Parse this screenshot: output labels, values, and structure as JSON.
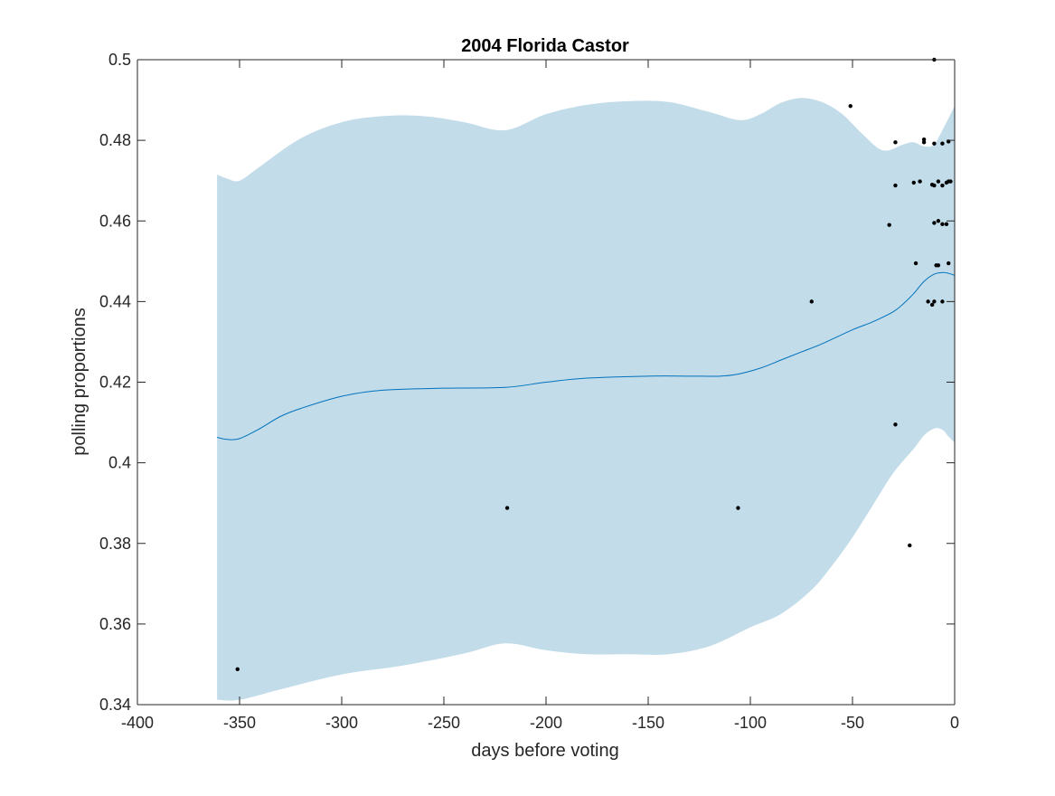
{
  "chart_data": {
    "type": "line",
    "title": "2004 Florida Castor",
    "xlabel": "days before voting",
    "ylabel": "polling proportions",
    "xlim": [
      -400,
      0
    ],
    "ylim": [
      0.34,
      0.5
    ],
    "xticks": [
      -400,
      -350,
      -300,
      -250,
      -200,
      -150,
      -100,
      -50,
      0
    ],
    "xtick_labels": [
      "-400",
      "-350",
      "-300",
      "-250",
      "-200",
      "-150",
      "-100",
      "-50",
      "0"
    ],
    "yticks": [
      0.34,
      0.36,
      0.38,
      0.4,
      0.42,
      0.44,
      0.46,
      0.48,
      0.5
    ],
    "ytick_labels": [
      "0.34",
      "0.36",
      "0.38",
      "0.4",
      "0.42",
      "0.44",
      "0.46",
      "0.48",
      "0.5"
    ],
    "grid": false,
    "colors": {
      "band": "#c2dcea",
      "mean_line": "#0072bd",
      "points": "#000000",
      "axes": "#262626"
    },
    "mean": {
      "x": [
        -361,
        -356,
        -350,
        -340,
        -330,
        -320,
        -300,
        -280,
        -250,
        -220,
        -200,
        -180,
        -150,
        -130,
        -115,
        -106,
        -95,
        -85,
        -75,
        -65,
        -50,
        -40,
        -30,
        -25,
        -20,
        -15,
        -10,
        -6,
        -3,
        0
      ],
      "y": [
        0.4063,
        0.4058,
        0.406,
        0.4085,
        0.4115,
        0.4135,
        0.4165,
        0.418,
        0.4185,
        0.4187,
        0.42,
        0.421,
        0.4215,
        0.4215,
        0.4215,
        0.422,
        0.4235,
        0.4255,
        0.4275,
        0.4295,
        0.433,
        0.435,
        0.4375,
        0.4395,
        0.442,
        0.445,
        0.4468,
        0.4472,
        0.447,
        0.4465
      ]
    },
    "band_upper": {
      "x": [
        -361,
        -356,
        -350,
        -340,
        -320,
        -300,
        -280,
        -260,
        -240,
        -220,
        -200,
        -180,
        -160,
        -140,
        -120,
        -105,
        -95,
        -85,
        -75,
        -65,
        -55,
        -45,
        -35,
        -25,
        -20,
        -15,
        -10,
        -5,
        0
      ],
      "y": [
        0.4715,
        0.4705,
        0.47,
        0.4735,
        0.4805,
        0.4845,
        0.486,
        0.486,
        0.4845,
        0.4825,
        0.4865,
        0.4888,
        0.4897,
        0.4895,
        0.487,
        0.485,
        0.4865,
        0.4893,
        0.4905,
        0.4895,
        0.4865,
        0.4815,
        0.4775,
        0.479,
        0.4795,
        0.4785,
        0.479,
        0.4835,
        0.4885
      ]
    },
    "band_lower": {
      "x": [
        -361,
        -350,
        -330,
        -300,
        -270,
        -240,
        -220,
        -200,
        -180,
        -160,
        -140,
        -120,
        -100,
        -85,
        -70,
        -60,
        -50,
        -40,
        -30,
        -20,
        -15,
        -10,
        -6,
        -3,
        0
      ],
      "y": [
        0.3412,
        0.3412,
        0.3438,
        0.3475,
        0.3497,
        0.3527,
        0.3552,
        0.3535,
        0.3525,
        0.3525,
        0.3525,
        0.3545,
        0.3592,
        0.3625,
        0.3685,
        0.3745,
        0.3815,
        0.3895,
        0.3975,
        0.4035,
        0.4068,
        0.4085,
        0.4082,
        0.4065,
        0.405
      ]
    },
    "points": {
      "x": [
        -351,
        -219,
        -106,
        -70,
        -51,
        -10,
        -29,
        -29,
        -15,
        -15,
        -10,
        -6,
        -3,
        -32,
        -20,
        -17,
        -11,
        -10,
        -8,
        -6,
        -4,
        -3,
        -2,
        -10,
        -8,
        -6,
        -4,
        -19,
        -9,
        -8,
        -3,
        -13,
        -11,
        -10,
        -6,
        -29,
        -22
      ],
      "y": [
        0.3488,
        0.3888,
        0.3888,
        0.44,
        0.4885,
        0.5,
        0.4795,
        0.4688,
        0.4802,
        0.4795,
        0.4792,
        0.4792,
        0.4797,
        0.459,
        0.4695,
        0.4698,
        0.469,
        0.4688,
        0.4698,
        0.4688,
        0.4695,
        0.4698,
        0.4698,
        0.4595,
        0.46,
        0.4592,
        0.4592,
        0.4495,
        0.449,
        0.449,
        0.4495,
        0.44,
        0.4392,
        0.44,
        0.44,
        0.4095,
        0.3795
      ]
    }
  }
}
